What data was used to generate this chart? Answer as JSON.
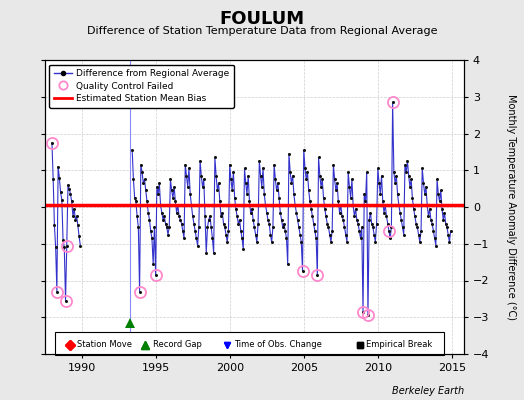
{
  "title": "FOULUM",
  "subtitle": "Difference of Station Temperature Data from Regional Average",
  "ylabel": "Monthly Temperature Anomaly Difference (°C)",
  "xlabel_bottom": "Berkeley Earth",
  "xlim": [
    1987.5,
    2015.8
  ],
  "ylim": [
    -4,
    4
  ],
  "mean_bias": 0.05,
  "bg_color": "#e8e8e8",
  "plot_bg_color": "#ffffff",
  "line_color": "#3333cc",
  "marker_color": "#111111",
  "bias_color": "#ff0000",
  "qc_color": "#ff88cc",
  "record_gap_x": 1993.25,
  "record_gap_y": -3.15,
  "vertical_line_x": 1993.25,
  "data": [
    [
      1988.0,
      1.75
    ],
    [
      1988.083,
      0.75
    ],
    [
      1988.167,
      -0.5
    ],
    [
      1988.25,
      -1.1
    ],
    [
      1988.333,
      -2.3
    ],
    [
      1988.417,
      1.1
    ],
    [
      1988.5,
      0.8
    ],
    [
      1988.583,
      0.4
    ],
    [
      1988.667,
      0.2
    ],
    [
      1988.75,
      -0.9
    ],
    [
      1988.833,
      -1.1
    ],
    [
      1988.917,
      -2.55
    ],
    [
      1989.0,
      -1.05
    ],
    [
      1989.083,
      0.6
    ],
    [
      1989.167,
      0.5
    ],
    [
      1989.25,
      0.35
    ],
    [
      1989.333,
      0.15
    ],
    [
      1989.417,
      -0.25
    ],
    [
      1989.5,
      -0.05
    ],
    [
      1989.583,
      -0.35
    ],
    [
      1989.667,
      -0.25
    ],
    [
      1989.75,
      -0.5
    ],
    [
      1989.833,
      -0.8
    ],
    [
      1989.917,
      -1.05
    ],
    [
      1993.417,
      1.55
    ],
    [
      1993.5,
      0.75
    ],
    [
      1993.583,
      0.25
    ],
    [
      1993.667,
      0.15
    ],
    [
      1993.75,
      -0.25
    ],
    [
      1993.833,
      -0.55
    ],
    [
      1993.917,
      -2.3
    ],
    [
      1994.0,
      1.15
    ],
    [
      1994.083,
      0.95
    ],
    [
      1994.167,
      0.65
    ],
    [
      1994.25,
      0.75
    ],
    [
      1994.333,
      0.45
    ],
    [
      1994.417,
      0.15
    ],
    [
      1994.5,
      -0.15
    ],
    [
      1994.583,
      -0.35
    ],
    [
      1994.667,
      -0.65
    ],
    [
      1994.75,
      -0.85
    ],
    [
      1994.833,
      -1.55
    ],
    [
      1994.917,
      -0.55
    ],
    [
      1995.0,
      -1.85
    ],
    [
      1995.083,
      0.55
    ],
    [
      1995.167,
      0.35
    ],
    [
      1995.25,
      0.65
    ],
    [
      1995.333,
      0.05
    ],
    [
      1995.417,
      -0.15
    ],
    [
      1995.5,
      -0.35
    ],
    [
      1995.583,
      -0.25
    ],
    [
      1995.667,
      -0.45
    ],
    [
      1995.75,
      -0.55
    ],
    [
      1995.833,
      -0.75
    ],
    [
      1995.917,
      -0.55
    ],
    [
      1996.0,
      0.75
    ],
    [
      1996.083,
      0.45
    ],
    [
      1996.167,
      0.25
    ],
    [
      1996.25,
      0.55
    ],
    [
      1996.333,
      0.15
    ],
    [
      1996.417,
      -0.15
    ],
    [
      1996.5,
      0.05
    ],
    [
      1996.583,
      -0.25
    ],
    [
      1996.667,
      -0.35
    ],
    [
      1996.75,
      -0.45
    ],
    [
      1996.833,
      -0.65
    ],
    [
      1996.917,
      -0.85
    ],
    [
      1997.0,
      1.15
    ],
    [
      1997.083,
      0.85
    ],
    [
      1997.167,
      0.55
    ],
    [
      1997.25,
      1.05
    ],
    [
      1997.333,
      0.35
    ],
    [
      1997.417,
      0.05
    ],
    [
      1997.5,
      -0.25
    ],
    [
      1997.583,
      -0.45
    ],
    [
      1997.667,
      -0.65
    ],
    [
      1997.75,
      -0.85
    ],
    [
      1997.833,
      -1.05
    ],
    [
      1997.917,
      -0.55
    ],
    [
      1998.0,
      1.25
    ],
    [
      1998.083,
      0.85
    ],
    [
      1998.167,
      0.55
    ],
    [
      1998.25,
      0.75
    ],
    [
      1998.333,
      -0.25
    ],
    [
      1998.417,
      -1.25
    ],
    [
      1998.5,
      -0.55
    ],
    [
      1998.583,
      -0.35
    ],
    [
      1998.667,
      -0.25
    ],
    [
      1998.75,
      -0.55
    ],
    [
      1998.833,
      -0.85
    ],
    [
      1998.917,
      -1.25
    ],
    [
      1999.0,
      1.35
    ],
    [
      1999.083,
      0.85
    ],
    [
      1999.167,
      0.45
    ],
    [
      1999.25,
      0.65
    ],
    [
      1999.333,
      0.15
    ],
    [
      1999.417,
      -0.25
    ],
    [
      1999.5,
      -0.15
    ],
    [
      1999.583,
      -0.45
    ],
    [
      1999.667,
      -0.55
    ],
    [
      1999.75,
      -0.75
    ],
    [
      1999.833,
      -0.95
    ],
    [
      1999.917,
      -0.65
    ],
    [
      2000.0,
      1.15
    ],
    [
      2000.083,
      0.75
    ],
    [
      2000.167,
      0.45
    ],
    [
      2000.25,
      0.95
    ],
    [
      2000.333,
      0.25
    ],
    [
      2000.417,
      -0.05
    ],
    [
      2000.5,
      -0.25
    ],
    [
      2000.583,
      -0.45
    ],
    [
      2000.667,
      -0.35
    ],
    [
      2000.75,
      -0.65
    ],
    [
      2000.833,
      -0.85
    ],
    [
      2000.917,
      -1.15
    ],
    [
      2001.0,
      1.05
    ],
    [
      2001.083,
      0.65
    ],
    [
      2001.167,
      0.35
    ],
    [
      2001.25,
      0.85
    ],
    [
      2001.333,
      0.15
    ],
    [
      2001.417,
      -0.15
    ],
    [
      2001.5,
      -0.05
    ],
    [
      2001.583,
      -0.35
    ],
    [
      2001.667,
      -0.55
    ],
    [
      2001.75,
      -0.75
    ],
    [
      2001.833,
      -0.95
    ],
    [
      2001.917,
      -0.45
    ],
    [
      2002.0,
      1.25
    ],
    [
      2002.083,
      0.85
    ],
    [
      2002.167,
      0.55
    ],
    [
      2002.25,
      1.05
    ],
    [
      2002.333,
      0.35
    ],
    [
      2002.417,
      0.05
    ],
    [
      2002.5,
      -0.15
    ],
    [
      2002.583,
      -0.35
    ],
    [
      2002.667,
      -0.45
    ],
    [
      2002.75,
      -0.75
    ],
    [
      2002.833,
      -0.95
    ],
    [
      2002.917,
      -0.55
    ],
    [
      2003.0,
      1.15
    ],
    [
      2003.083,
      0.75
    ],
    [
      2003.167,
      0.45
    ],
    [
      2003.25,
      0.65
    ],
    [
      2003.333,
      0.25
    ],
    [
      2003.417,
      -0.15
    ],
    [
      2003.5,
      -0.35
    ],
    [
      2003.583,
      -0.55
    ],
    [
      2003.667,
      -0.45
    ],
    [
      2003.75,
      -0.65
    ],
    [
      2003.833,
      -0.85
    ],
    [
      2003.917,
      -1.55
    ],
    [
      2004.0,
      1.45
    ],
    [
      2004.083,
      0.95
    ],
    [
      2004.167,
      0.65
    ],
    [
      2004.25,
      0.85
    ],
    [
      2004.333,
      0.35
    ],
    [
      2004.417,
      0.05
    ],
    [
      2004.5,
      -0.15
    ],
    [
      2004.583,
      -0.35
    ],
    [
      2004.667,
      -0.55
    ],
    [
      2004.75,
      -0.75
    ],
    [
      2004.833,
      -0.95
    ],
    [
      2004.917,
      -1.75
    ],
    [
      2005.0,
      1.55
    ],
    [
      2005.083,
      1.05
    ],
    [
      2005.167,
      0.75
    ],
    [
      2005.25,
      0.95
    ],
    [
      2005.333,
      0.45
    ],
    [
      2005.417,
      0.15
    ],
    [
      2005.5,
      -0.05
    ],
    [
      2005.583,
      -0.25
    ],
    [
      2005.667,
      -0.45
    ],
    [
      2005.75,
      -0.65
    ],
    [
      2005.833,
      -0.85
    ],
    [
      2005.917,
      -1.85
    ],
    [
      2006.0,
      1.35
    ],
    [
      2006.083,
      0.85
    ],
    [
      2006.167,
      0.55
    ],
    [
      2006.25,
      0.75
    ],
    [
      2006.333,
      0.25
    ],
    [
      2006.417,
      -0.05
    ],
    [
      2006.5,
      -0.25
    ],
    [
      2006.583,
      -0.45
    ],
    [
      2006.667,
      -0.55
    ],
    [
      2006.75,
      -0.75
    ],
    [
      2006.833,
      -0.95
    ],
    [
      2006.917,
      -0.65
    ],
    [
      2007.0,
      1.15
    ],
    [
      2007.083,
      0.75
    ],
    [
      2007.167,
      0.45
    ],
    [
      2007.25,
      0.65
    ],
    [
      2007.333,
      0.15
    ],
    [
      2007.417,
      -0.15
    ],
    [
      2007.5,
      0.05
    ],
    [
      2007.583,
      -0.25
    ],
    [
      2007.667,
      -0.35
    ],
    [
      2007.75,
      -0.55
    ],
    [
      2007.833,
      -0.75
    ],
    [
      2007.917,
      -0.95
    ],
    [
      2008.0,
      0.95
    ],
    [
      2008.083,
      0.55
    ],
    [
      2008.167,
      0.25
    ],
    [
      2008.25,
      0.75
    ],
    [
      2008.333,
      0.05
    ],
    [
      2008.417,
      -0.25
    ],
    [
      2008.5,
      -0.05
    ],
    [
      2008.583,
      -0.35
    ],
    [
      2008.667,
      -0.45
    ],
    [
      2008.75,
      -0.65
    ],
    [
      2008.833,
      -0.85
    ],
    [
      2008.917,
      -0.55
    ],
    [
      2009.0,
      -2.85
    ],
    [
      2009.083,
      0.35
    ],
    [
      2009.167,
      0.15
    ],
    [
      2009.25,
      0.95
    ],
    [
      2009.333,
      -2.95
    ],
    [
      2009.417,
      -0.35
    ],
    [
      2009.5,
      -0.15
    ],
    [
      2009.583,
      -0.45
    ],
    [
      2009.667,
      -0.55
    ],
    [
      2009.75,
      -0.75
    ],
    [
      2009.833,
      -0.95
    ],
    [
      2009.917,
      -0.45
    ],
    [
      2010.0,
      1.05
    ],
    [
      2010.083,
      0.65
    ],
    [
      2010.167,
      0.35
    ],
    [
      2010.25,
      0.85
    ],
    [
      2010.333,
      0.15
    ],
    [
      2010.417,
      -0.15
    ],
    [
      2010.5,
      0.05
    ],
    [
      2010.583,
      -0.25
    ],
    [
      2010.667,
      -0.45
    ],
    [
      2010.75,
      -0.65
    ],
    [
      2010.833,
      -0.85
    ],
    [
      2010.917,
      -0.55
    ],
    [
      2011.0,
      2.85
    ],
    [
      2011.083,
      0.95
    ],
    [
      2011.167,
      0.65
    ],
    [
      2011.25,
      0.85
    ],
    [
      2011.333,
      0.35
    ],
    [
      2011.417,
      0.05
    ],
    [
      2011.5,
      -0.15
    ],
    [
      2011.583,
      -0.35
    ],
    [
      2011.667,
      -0.55
    ],
    [
      2011.75,
      -0.75
    ],
    [
      2011.833,
      1.15
    ],
    [
      2011.917,
      0.95
    ],
    [
      2012.0,
      1.25
    ],
    [
      2012.083,
      0.85
    ],
    [
      2012.167,
      0.55
    ],
    [
      2012.25,
      0.75
    ],
    [
      2012.333,
      0.25
    ],
    [
      2012.417,
      -0.05
    ],
    [
      2012.5,
      -0.25
    ],
    [
      2012.583,
      -0.45
    ],
    [
      2012.667,
      -0.55
    ],
    [
      2012.75,
      -0.75
    ],
    [
      2012.833,
      -0.95
    ],
    [
      2012.917,
      -0.65
    ],
    [
      2013.0,
      1.05
    ],
    [
      2013.083,
      0.65
    ],
    [
      2013.167,
      0.35
    ],
    [
      2013.25,
      0.55
    ],
    [
      2013.333,
      0.05
    ],
    [
      2013.417,
      -0.25
    ],
    [
      2013.5,
      -0.05
    ],
    [
      2013.583,
      -0.35
    ],
    [
      2013.667,
      -0.45
    ],
    [
      2013.75,
      -0.65
    ],
    [
      2013.833,
      -0.85
    ],
    [
      2013.917,
      -1.05
    ],
    [
      2014.0,
      0.75
    ],
    [
      2014.083,
      0.35
    ],
    [
      2014.167,
      0.15
    ],
    [
      2014.25,
      0.45
    ],
    [
      2014.333,
      -0.05
    ],
    [
      2014.417,
      -0.35
    ],
    [
      2014.5,
      -0.15
    ],
    [
      2014.583,
      -0.45
    ],
    [
      2014.667,
      -0.55
    ],
    [
      2014.75,
      -0.75
    ],
    [
      2014.833,
      -0.95
    ],
    [
      2014.917,
      -0.65
    ]
  ],
  "qc_points": [
    [
      1988.0,
      1.75
    ],
    [
      1988.333,
      -2.3
    ],
    [
      1988.917,
      -2.55
    ],
    [
      1989.0,
      -1.05
    ],
    [
      1993.917,
      -2.3
    ],
    [
      1995.0,
      -1.85
    ],
    [
      2004.917,
      -1.75
    ],
    [
      2005.917,
      -1.85
    ],
    [
      2009.0,
      -2.85
    ],
    [
      2009.333,
      -2.95
    ],
    [
      2010.75,
      -0.65
    ],
    [
      2011.0,
      2.85
    ]
  ]
}
